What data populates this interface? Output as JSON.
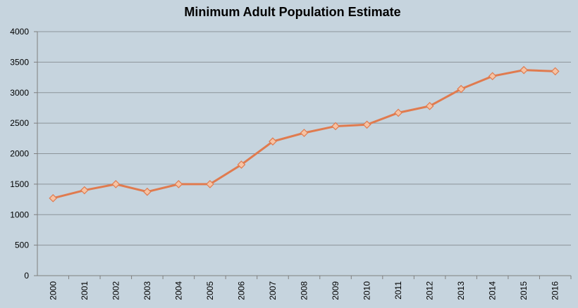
{
  "chart_data": {
    "type": "line",
    "title": "Minimum Adult Population Estimate",
    "categories": [
      "2000",
      "2001",
      "2002",
      "2003",
      "2004",
      "2005",
      "2006",
      "2007",
      "2008",
      "2009",
      "2010",
      "2011",
      "2012",
      "2013",
      "2014",
      "2015",
      "2016"
    ],
    "values": [
      1270,
      1400,
      1500,
      1375,
      1500,
      1500,
      1820,
      2200,
      2340,
      2450,
      2475,
      2670,
      2780,
      3060,
      3270,
      3370,
      3350
    ],
    "color": "#e07b4f",
    "marker_color": "#f6c3a4",
    "ylim": [
      0,
      4000
    ],
    "yticks": [
      0,
      500,
      1000,
      1500,
      2000,
      2500,
      3000,
      3500,
      4000
    ],
    "grid": true
  }
}
